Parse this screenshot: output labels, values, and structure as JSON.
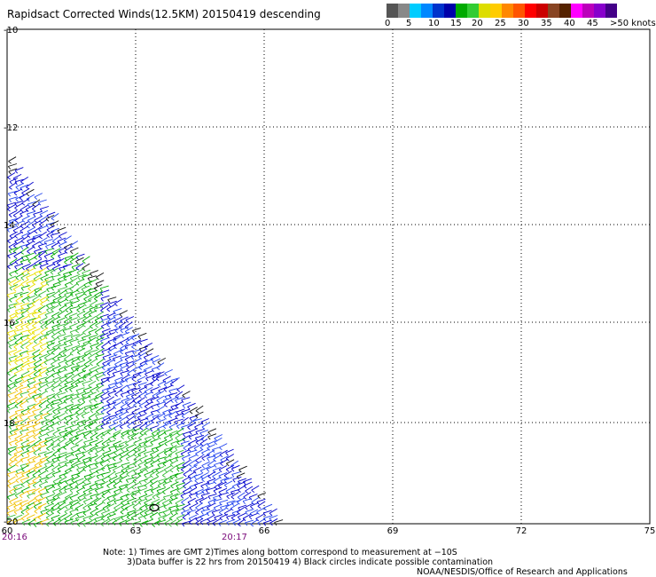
{
  "title": "Rapidsact Corrected Winds(12.5KM) 20150419 descending",
  "colorbar": {
    "colors": [
      "#555555",
      "#888888",
      "#00ccff",
      "#0088ff",
      "#0033cc",
      "#0000aa",
      "#00aa00",
      "#33cc33",
      "#dddd00",
      "#ffcc00",
      "#ff8800",
      "#ff5500",
      "#ff0000",
      "#cc0000",
      "#884422",
      "#552200",
      "#ff00ff",
      "#bb00bb",
      "#8800cc",
      "#440088"
    ],
    "labels": [
      "0",
      "5",
      "10",
      "15",
      "20",
      "25",
      "30",
      "35",
      "40",
      "45",
      ">50 knots"
    ]
  },
  "map": {
    "lat_ticks": [
      "-10",
      "-12",
      "14",
      "16",
      "18",
      "-20"
    ],
    "lon_ticks": [
      "60",
      "63",
      "66",
      "69",
      "72",
      "75"
    ],
    "times": [
      "20:16",
      "20:17"
    ],
    "wind_colors": [
      "#0000cc",
      "#2244ee",
      "#00aa00",
      "#33bb33",
      "#e8e000",
      "#f0c000",
      "#111111"
    ]
  },
  "notes": {
    "line1": "Note: 1) Times are GMT 2)Times along bottom correspond to measurement at −10S",
    "line2": "3)Data buffer is 22 hrs from 20150419 4) Black circles indicate possible contamination",
    "line3": "NOAA/NESDIS/Office of Research and Applications"
  }
}
